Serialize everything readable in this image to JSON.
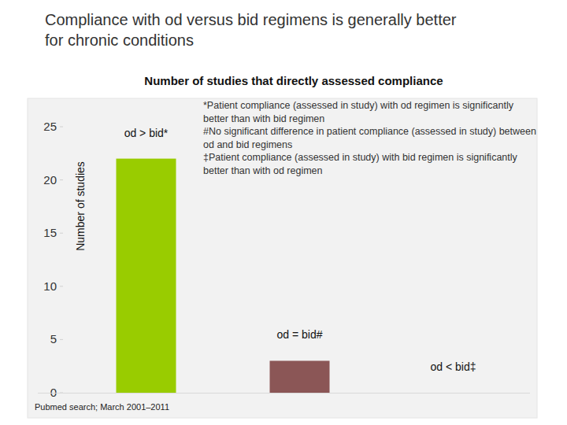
{
  "chart_data": {
    "type": "bar",
    "title": "Compliance with od versus bid regimens is generally better for chronic conditions",
    "subtitle": "Number of studies that directly assessed compliance",
    "y_label": "Number of studies",
    "categories": [
      "od > bid*",
      "od = bid#",
      "od < bid‡"
    ],
    "values": [
      22,
      3,
      0
    ],
    "colors": [
      "#99cc00",
      "#8b5656",
      "#8b5656"
    ],
    "ylim": [
      0,
      25
    ],
    "yticks": [
      0,
      5,
      10,
      15,
      20,
      25
    ],
    "grid": false,
    "annotations": [
      "*Patient compliance (assessed in study) with od regimen is significantly better than with bid regimen",
      "#No significant difference in patient compliance (assessed in study) between od and bid regimens",
      "‡Patient compliance (assessed in study) with bid regimen is significantly better than with od regimen"
    ],
    "source": "Pubmed search; March 2001–2011"
  }
}
